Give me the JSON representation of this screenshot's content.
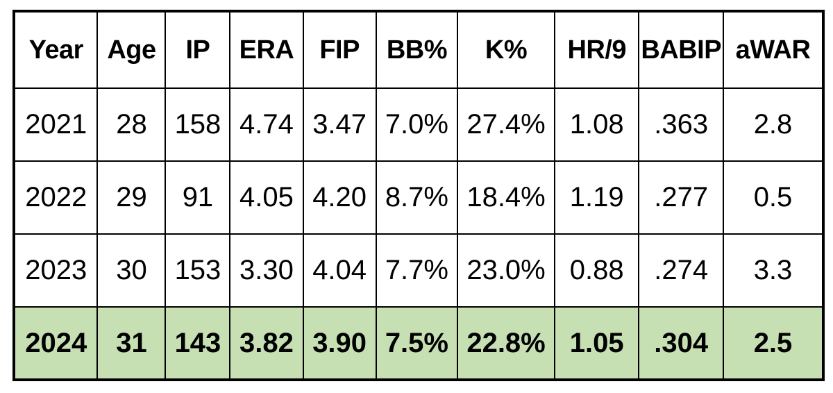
{
  "chart_data": {
    "type": "table",
    "columns": [
      "Year",
      "Age",
      "IP",
      "ERA",
      "FIP",
      "BB%",
      "K%",
      "HR/9",
      "BABIP",
      "aWAR"
    ],
    "rows": [
      [
        "2021",
        "28",
        "158",
        "4.74",
        "3.47",
        "7.0%",
        "27.4%",
        "1.08",
        ".363",
        "2.8"
      ],
      [
        "2022",
        "29",
        "91",
        "4.05",
        "4.20",
        "8.7%",
        "18.4%",
        "1.19",
        ".277",
        "0.5"
      ],
      [
        "2023",
        "30",
        "153",
        "3.30",
        "4.04",
        "7.7%",
        "23.0%",
        "0.88",
        ".274",
        "3.3"
      ],
      [
        "2024",
        "31",
        "143",
        "3.82",
        "3.90",
        "7.5%",
        "22.8%",
        "1.05",
        ".304",
        "2.5"
      ]
    ],
    "highlight_row_index": 3,
    "highlight_color": "#c6e0b4",
    "border_color": "#000000"
  }
}
